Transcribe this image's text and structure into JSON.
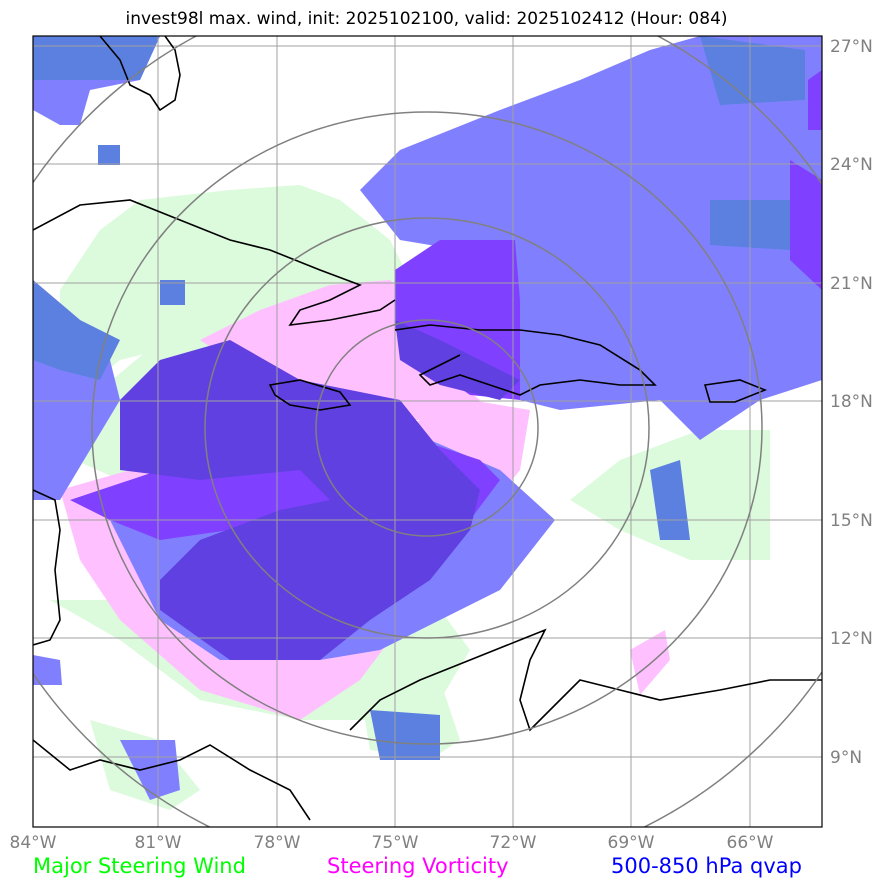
{
  "title": "invest98l max. wind, init: 2025102100, valid: 2025102412 (Hour: 084)",
  "lon_ticks": [
    "84°W",
    "81°W",
    "78°W",
    "75°W",
    "72°W",
    "69°W",
    "66°W"
  ],
  "lat_ticks": [
    "27°N",
    "24°N",
    "21°N",
    "18°N",
    "15°N",
    "12°N",
    "9°N"
  ],
  "legend": [
    {
      "label": "Major Steering Wind",
      "color": "#00ff00"
    },
    {
      "label": "Steering Vorticity",
      "color": "#ff00ff"
    },
    {
      "label": "500-850 hPa qvap",
      "color": "#0000ff"
    }
  ],
  "colors": {
    "steering_wind_fill": "#dcfadc",
    "vorticity_fill": "#ffc0ff",
    "qvap_fill": "#8080ff",
    "qvap_dark": "#5b80e0",
    "overlap_purple": "#8040ff",
    "overlap_dark": "#6040e0",
    "grid": "#a0a0a0",
    "range_rings": "#808080"
  }
}
